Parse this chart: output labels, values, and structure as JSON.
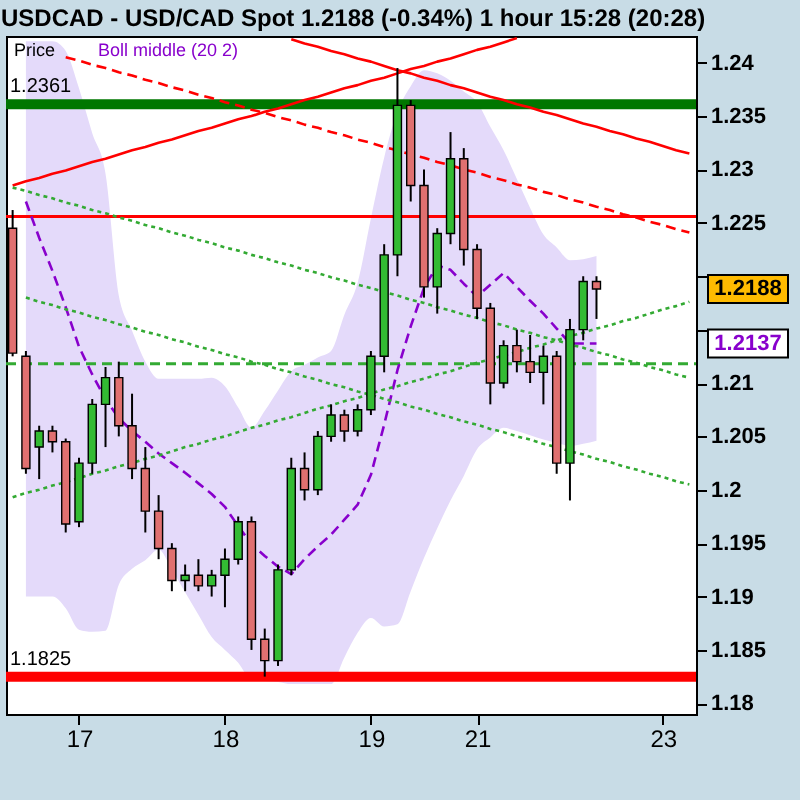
{
  "chart_data": {
    "type": "candlestick",
    "title": "USDCAD - USD/CAD Spot    1.2188 (-0.34%)    1 hour    15:28 (20:28)",
    "legend": "top left",
    "categories": [
      null,
      null,
      null,
      null,
      null,
      "17",
      null,
      null,
      null,
      null,
      null,
      null,
      null,
      null,
      null,
      null,
      "18",
      null,
      null,
      null,
      null,
      null,
      null,
      null,
      null,
      null,
      null,
      "19",
      null,
      null,
      null,
      null,
      null,
      null,
      null,
      "21",
      null,
      null,
      null,
      null,
      null,
      null,
      null,
      null,
      null,
      null,
      null,
      null,
      null,
      "23",
      null,
      null
    ],
    "ylim": [
      1.179,
      1.2425
    ],
    "yticks": [
      1.18,
      1.185,
      1.19,
      1.195,
      1.2,
      1.205,
      1.21,
      {
        "value": 1.215,
        "label": null
      },
      {
        "value": 1.22,
        "label": null
      },
      1.225,
      1.23,
      1.235,
      1.24
    ],
    "grid": false,
    "series": [
      {
        "name": "Price",
        "ohlc": [
          [
            1.2245,
            1.2262,
            1.2125,
            1.2128
          ],
          [
            1.2125,
            1.213,
            1.2015,
            1.202
          ],
          [
            1.204,
            1.206,
            1.201,
            1.2055
          ],
          [
            1.2055,
            1.206,
            1.2035,
            1.2045
          ],
          [
            1.2045,
            1.2048,
            1.196,
            1.1968
          ],
          [
            1.197,
            1.203,
            1.1965,
            1.2025
          ],
          [
            1.2025,
            1.2085,
            1.2015,
            1.208
          ],
          [
            1.208,
            1.2115,
            1.204,
            1.2105
          ],
          [
            1.2105,
            1.212,
            1.205,
            1.206
          ],
          [
            1.206,
            1.209,
            1.201,
            1.202
          ],
          [
            1.202,
            1.204,
            1.196,
            1.198
          ],
          [
            1.198,
            1.1995,
            1.1935,
            1.1945
          ],
          [
            1.1945,
            1.195,
            1.1905,
            1.1915
          ],
          [
            1.1915,
            1.193,
            1.1905,
            1.192
          ],
          [
            1.192,
            1.1935,
            1.1905,
            1.191
          ],
          [
            1.191,
            1.1925,
            1.19,
            1.192
          ],
          [
            1.192,
            1.1945,
            1.189,
            1.1935
          ],
          [
            1.1935,
            1.1975,
            1.193,
            1.197
          ],
          [
            1.197,
            1.1975,
            1.185,
            1.186
          ],
          [
            1.186,
            1.187,
            1.1825,
            1.184
          ],
          [
            1.184,
            1.193,
            1.1835,
            1.1925
          ],
          [
            1.1925,
            1.203,
            1.192,
            1.202
          ],
          [
            1.202,
            1.2035,
            1.199,
            1.2
          ],
          [
            1.2,
            1.2055,
            1.1995,
            1.205
          ],
          [
            1.205,
            1.208,
            1.2045,
            1.207
          ],
          [
            1.207,
            1.2075,
            1.2045,
            1.2055
          ],
          [
            1.2055,
            1.208,
            1.205,
            1.2075
          ],
          [
            1.2075,
            1.213,
            1.207,
            1.2125
          ],
          [
            1.2125,
            1.223,
            1.211,
            1.222
          ],
          [
            1.222,
            1.2395,
            1.22,
            1.236
          ],
          [
            1.236,
            1.2365,
            1.227,
            1.2285
          ],
          [
            1.2285,
            1.23,
            1.218,
            1.219
          ],
          [
            1.219,
            1.2245,
            1.2165,
            1.224
          ],
          [
            1.224,
            1.2335,
            1.223,
            1.231
          ],
          [
            1.231,
            1.232,
            1.221,
            1.2225
          ],
          [
            1.2225,
            1.223,
            1.216,
            1.217
          ],
          [
            1.217,
            1.2175,
            1.208,
            1.21
          ],
          [
            1.21,
            1.214,
            1.2095,
            1.2135
          ],
          [
            1.2135,
            1.215,
            1.211,
            1.212
          ],
          [
            1.212,
            1.2145,
            1.21,
            1.211
          ],
          [
            1.211,
            1.2135,
            1.208,
            1.2125
          ],
          [
            1.2125,
            1.213,
            1.2015,
            1.2025
          ],
          [
            1.2025,
            1.216,
            1.199,
            1.215
          ],
          [
            1.215,
            1.22,
            1.214,
            1.2195
          ],
          [
            1.2195,
            1.22,
            1.216,
            1.2188
          ],
          null,
          null,
          null,
          null,
          null,
          null,
          null
        ],
        "colors": [
          "#e07070",
          "#e07070",
          "#33bb33",
          "#e07070",
          "#e07070",
          "#33bb33",
          "#33bb33",
          "#33bb33",
          "#e07070",
          "#e07070",
          "#e07070",
          "#e07070",
          "#e07070",
          "#33bb33",
          "#e07070",
          "#33bb33",
          "#33bb33",
          "#33bb33",
          "#e07070",
          "#e07070",
          "#33bb33",
          "#33bb33",
          "#e07070",
          "#33bb33",
          "#33bb33",
          "#e07070",
          "#33bb33",
          "#33bb33",
          "#33bb33",
          "#33bb33",
          "#e07070",
          "#e07070",
          "#33bb33",
          "#33bb33",
          "#e07070",
          "#e07070",
          "#e07070",
          "#33bb33",
          "#e07070",
          "#e07070",
          "#33bb33",
          "#e07070",
          "#33bb33",
          "#33bb33",
          "#e07070",
          null,
          null,
          null,
          null,
          null,
          null,
          null
        ]
      },
      {
        "name": "Boll middle (20 2)",
        "type": "line",
        "color": "#8800cc",
        "line_style": "dashed",
        "values": [
          null,
          1.227,
          1.2236,
          1.2205,
          1.2171,
          1.2134,
          1.2108,
          1.2085,
          1.2067,
          1.2055,
          1.2045,
          1.2034,
          1.2025,
          1.2016,
          1.2006,
          1.1996,
          1.1984,
          1.1966,
          1.1949,
          1.1938,
          1.1928,
          1.1921,
          1.1935,
          1.1947,
          1.1958,
          1.1972,
          1.1986,
          1.2014,
          1.2061,
          1.2112,
          1.2153,
          1.2189,
          1.221,
          1.2206,
          1.2193,
          1.2181,
          1.2192,
          1.2203,
          1.219,
          1.2177,
          1.2165,
          1.2151,
          1.2137,
          1.2137,
          1.2137,
          null,
          null,
          null,
          null,
          null,
          null,
          null
        ],
        "upper": [
          null,
          1.242,
          1.242,
          1.242,
          1.2411,
          1.2376,
          1.2334,
          1.2296,
          1.2182,
          1.2149,
          1.212,
          1.2104,
          1.2104,
          1.2104,
          1.2104,
          1.2105,
          1.2097,
          1.2077,
          1.2058,
          1.2074,
          1.2093,
          1.2111,
          1.2117,
          1.2124,
          1.213,
          1.2164,
          1.2194,
          1.2254,
          1.2311,
          1.2354,
          1.2378,
          1.2393,
          1.239,
          1.2383,
          1.2373,
          1.2363,
          1.234,
          1.2318,
          1.2291,
          1.2264,
          1.2239,
          1.2227,
          1.2215,
          1.2216,
          1.2219,
          null,
          null,
          null,
          null,
          null,
          null,
          null
        ],
        "lower": [
          null,
          1.19,
          1.19,
          1.19,
          1.1889,
          1.1869,
          1.1867,
          1.1868,
          1.1911,
          1.1926,
          1.1934,
          1.1944,
          1.1925,
          1.1904,
          1.1883,
          1.1862,
          1.185,
          1.1838,
          1.1822,
          1.1821,
          1.182,
          1.1818,
          1.1818,
          1.1818,
          1.1818,
          1.1843,
          1.1866,
          1.188,
          1.1872,
          1.1874,
          1.1905,
          1.1936,
          1.1964,
          1.199,
          1.2013,
          1.2038,
          1.2049,
          1.2058,
          1.2055,
          1.2051,
          1.2047,
          1.2044,
          1.2041,
          1.2043,
          1.2046,
          null,
          null,
          null,
          null,
          null,
          null,
          null
        ]
      },
      {
        "type": "line",
        "color": "#ff0000",
        "line_style": "solid",
        "values": [
          1.2285,
          1.2289,
          1.2292,
          1.2296,
          1.2299,
          1.2303,
          1.2307,
          1.231,
          1.2314,
          1.2318,
          1.2321,
          1.2325,
          1.2328,
          1.2332,
          1.2336,
          1.2339,
          1.2343,
          1.2347,
          1.235,
          1.2354,
          1.2357,
          1.2361,
          1.2365,
          1.2368,
          1.2372,
          1.2376,
          1.2379,
          1.2383,
          1.2386,
          1.239,
          1.2394,
          1.2397,
          1.2401,
          1.2404,
          1.2408,
          1.2412,
          1.2415,
          1.2419,
          1.2423,
          null,
          null,
          null,
          null,
          null,
          null,
          null,
          null,
          null,
          null,
          null,
          null,
          null
        ]
      },
      {
        "type": "line",
        "color": "#ff0000",
        "line_style": "solid",
        "values": [
          null,
          null,
          null,
          null,
          null,
          null,
          null,
          null,
          null,
          null,
          null,
          null,
          null,
          null,
          null,
          null,
          null,
          null,
          null,
          null,
          null,
          1.2422,
          1.2418,
          1.2415,
          1.2411,
          1.2408,
          1.2404,
          1.2401,
          1.2397,
          1.2393,
          1.239,
          1.2386,
          1.2383,
          1.2379,
          1.2376,
          1.2372,
          1.2368,
          1.2365,
          1.2361,
          1.2358,
          1.2354,
          1.2351,
          1.2347,
          1.2343,
          1.234,
          1.2336,
          1.2333,
          1.2329,
          1.2326,
          1.2322,
          1.2318,
          1.2315
        ]
      },
      {
        "type": "line",
        "color": "#ff0000",
        "line_style": "dashed",
        "values": [
          null,
          null,
          null,
          null,
          1.2405,
          1.2402,
          1.2398,
          1.2395,
          1.2391,
          1.2388,
          1.2384,
          1.2381,
          1.2377,
          1.2374,
          1.237,
          1.2367,
          1.2363,
          1.236,
          1.2356,
          1.2353,
          1.2349,
          1.2346,
          1.2342,
          1.2339,
          1.2335,
          1.2332,
          1.2328,
          1.2325,
          1.2321,
          1.2318,
          1.2314,
          1.2311,
          1.2307,
          1.2304,
          1.23,
          1.2297,
          1.2293,
          1.229,
          1.2286,
          1.2283,
          1.2279,
          1.2276,
          1.2272,
          1.2269,
          1.2265,
          1.2262,
          1.2258,
          1.2255,
          1.2251,
          1.2248,
          1.2244,
          1.2241
        ]
      },
      {
        "type": "line",
        "color": "#33aa33",
        "line_style": "dotted",
        "values": [
          1.2283,
          1.228,
          1.2276,
          1.2273,
          1.2269,
          1.2266,
          1.2262,
          1.2259,
          1.2255,
          1.2252,
          1.2248,
          1.2245,
          1.2241,
          1.2238,
          1.2234,
          1.2231,
          1.2227,
          1.2224,
          1.222,
          1.2217,
          1.2213,
          1.221,
          1.2206,
          1.2203,
          1.2199,
          1.2196,
          1.2192,
          1.2189,
          1.2185,
          1.2182,
          1.2178,
          1.2175,
          1.2171,
          1.2168,
          1.2164,
          1.2161,
          1.2157,
          1.2154,
          1.215,
          1.2147,
          1.2143,
          1.214,
          1.2136,
          1.2133,
          1.2129,
          1.2126,
          1.2122,
          1.2119,
          1.2115,
          1.2112,
          1.2108,
          1.2105
        ]
      },
      {
        "type": "line",
        "color": "#33aa33",
        "line_style": "dotted",
        "values": [
          null,
          1.218,
          1.2176,
          1.2173,
          1.2169,
          1.2166,
          1.2162,
          1.2159,
          1.2155,
          1.2152,
          1.2148,
          1.2145,
          1.2141,
          1.2138,
          1.2134,
          1.2131,
          1.2127,
          1.2124,
          1.212,
          1.2117,
          1.2113,
          1.211,
          1.2106,
          1.2103,
          1.2099,
          1.2096,
          1.2092,
          1.2089,
          1.2085,
          1.2082,
          1.2078,
          1.2075,
          1.2071,
          1.2068,
          1.2064,
          1.2061,
          1.2057,
          1.2054,
          1.205,
          1.2047,
          1.2043,
          1.204,
          1.2036,
          1.2033,
          1.2029,
          1.2026,
          1.2022,
          1.2019,
          1.2015,
          1.2012,
          1.2008,
          1.2005
        ]
      },
      {
        "type": "line",
        "color": "#33aa33",
        "line_style": "dotted",
        "values": [
          1.1993,
          1.1997,
          1.2,
          1.2004,
          1.2007,
          1.2011,
          1.2015,
          1.2018,
          1.2022,
          1.2025,
          1.2029,
          1.2032,
          1.2036,
          1.204,
          1.2043,
          1.2047,
          1.205,
          1.2054,
          1.2058,
          1.2061,
          1.2065,
          1.2068,
          1.2072,
          1.2076,
          1.2079,
          1.2083,
          1.2086,
          1.209,
          1.2094,
          1.2097,
          1.2101,
          1.2104,
          1.2108,
          1.2111,
          1.2115,
          1.2119,
          1.2122,
          1.2126,
          1.2129,
          1.2133,
          1.2136,
          1.214,
          1.2144,
          1.2147,
          1.2151,
          1.2154,
          1.2158,
          1.2161,
          1.2165,
          1.2169,
          1.2172,
          1.2176
        ]
      }
    ],
    "ref_lines": [
      {
        "axis": "y",
        "value": 1.2361,
        "label": "1.2361",
        "color": "#007700"
      },
      {
        "axis": "y",
        "value": 1.1825,
        "label": "1.1825",
        "color": "#ff0000"
      },
      {
        "axis": "y",
        "value": 1.2256,
        "color": "#ff0000"
      },
      {
        "axis": "y",
        "value": 1.2118,
        "color": "#33aa33",
        "line_style": "dashed"
      }
    ],
    "annotations": [
      "1.2188",
      "1.2137"
    ]
  }
}
